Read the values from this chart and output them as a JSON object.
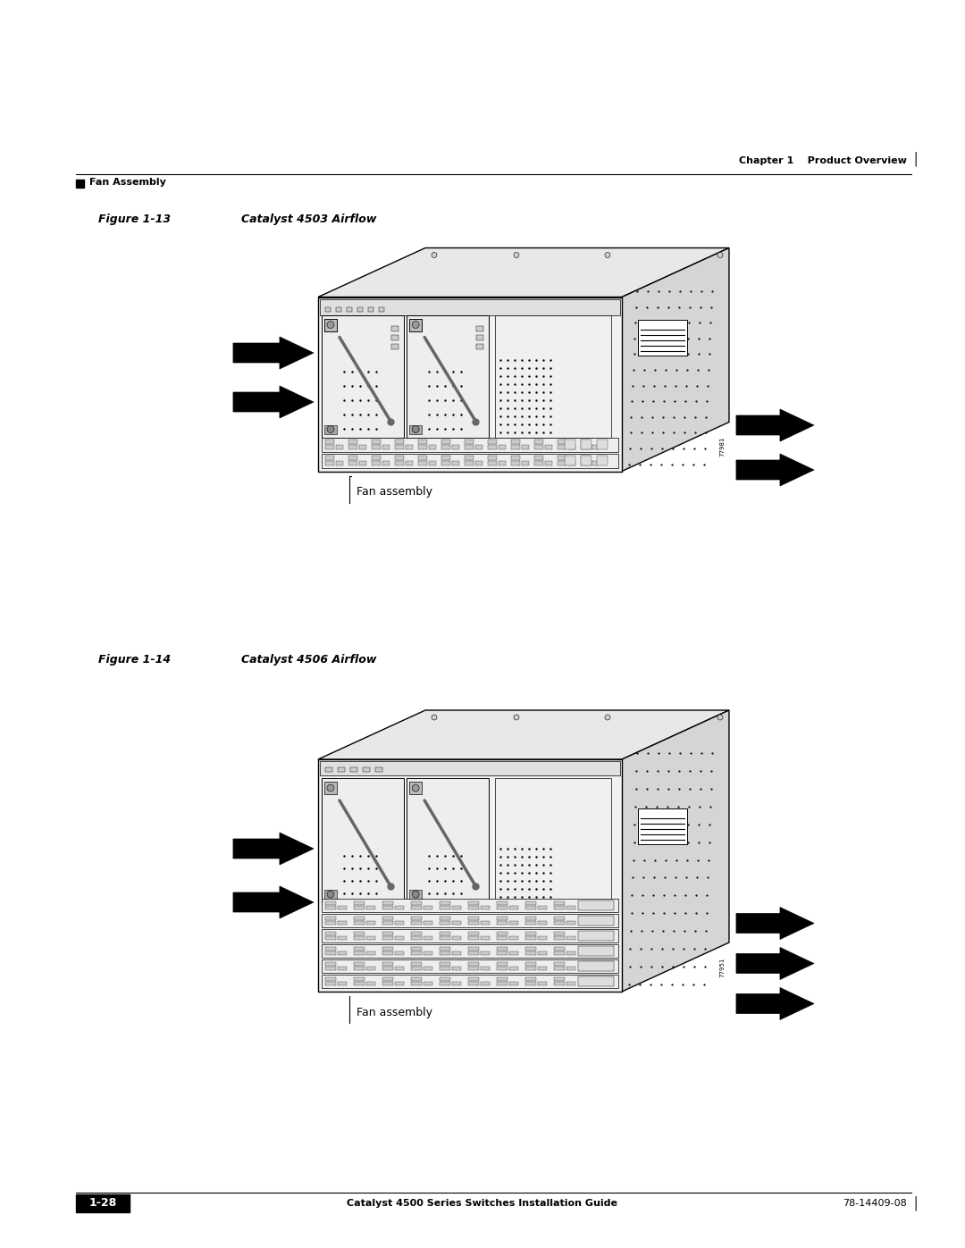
{
  "bg_color": "#ffffff",
  "header_right": "Chapter 1    Product Overview",
  "header_left_text": "Fan Assembly",
  "fig1_label": "Figure 1-13",
  "fig1_title": "Catalyst 4503 Airflow",
  "fig1_caption": "Fan assembly",
  "fig2_label": "Figure 1-14",
  "fig2_title": "Catalyst 4506 Airflow",
  "fig2_caption": "Fan assembly",
  "footer_page": "1-28",
  "footer_center": "Catalyst 4500 Series Switches Installation Guide",
  "footer_right": "78-14409-08",
  "id1": "77981",
  "id2": "77951"
}
